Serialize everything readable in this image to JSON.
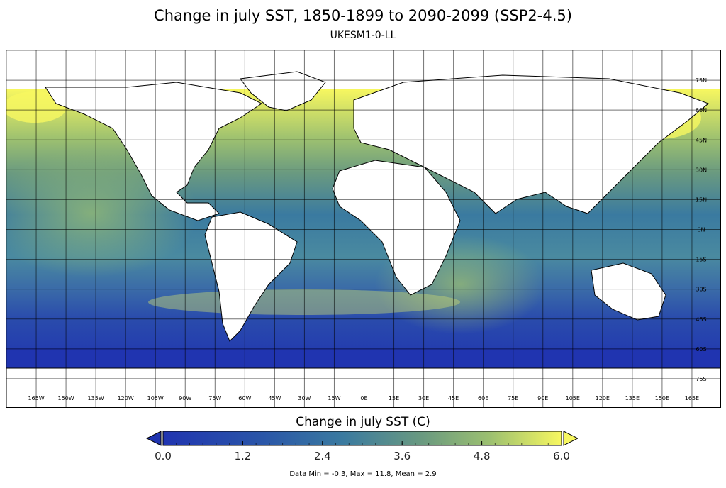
{
  "title": "Change in july SST, 1850-1899 to 2090-2099 (SSP2-4.5)",
  "subtitle": "UKESM1-0-LL",
  "map": {
    "projection": "equirectangular",
    "lon_range": [
      -180,
      180
    ],
    "lat_range": [
      -90,
      90
    ],
    "gridlines": true,
    "lon_labels": [
      "165W",
      "150W",
      "135W",
      "120W",
      "105W",
      "90W",
      "75W",
      "60W",
      "45W",
      "30W",
      "15W",
      "0E",
      "15E",
      "30E",
      "45E",
      "60E",
      "75E",
      "90E",
      "105E",
      "120E",
      "135E",
      "150E",
      "165E"
    ],
    "lat_labels": [
      "75N",
      "60N",
      "45N",
      "30N",
      "15N",
      "0N",
      "15S",
      "30S",
      "45S",
      "60S",
      "75S"
    ],
    "land_color": "#ffffff"
  },
  "colorbar": {
    "title": "Change in july SST (C)",
    "tick_labels": [
      "0.0",
      "1.2",
      "2.4",
      "3.6",
      "4.8",
      "6.0"
    ],
    "range": [
      0,
      6
    ],
    "colors": [
      "#2034b0",
      "#2a56a8",
      "#3a7aa0",
      "#6a9a80",
      "#9cc070",
      "#f7f760"
    ],
    "extend": "both"
  },
  "stats": "Data Min = -0.3, Max = 11.8, Mean = 2.9"
}
